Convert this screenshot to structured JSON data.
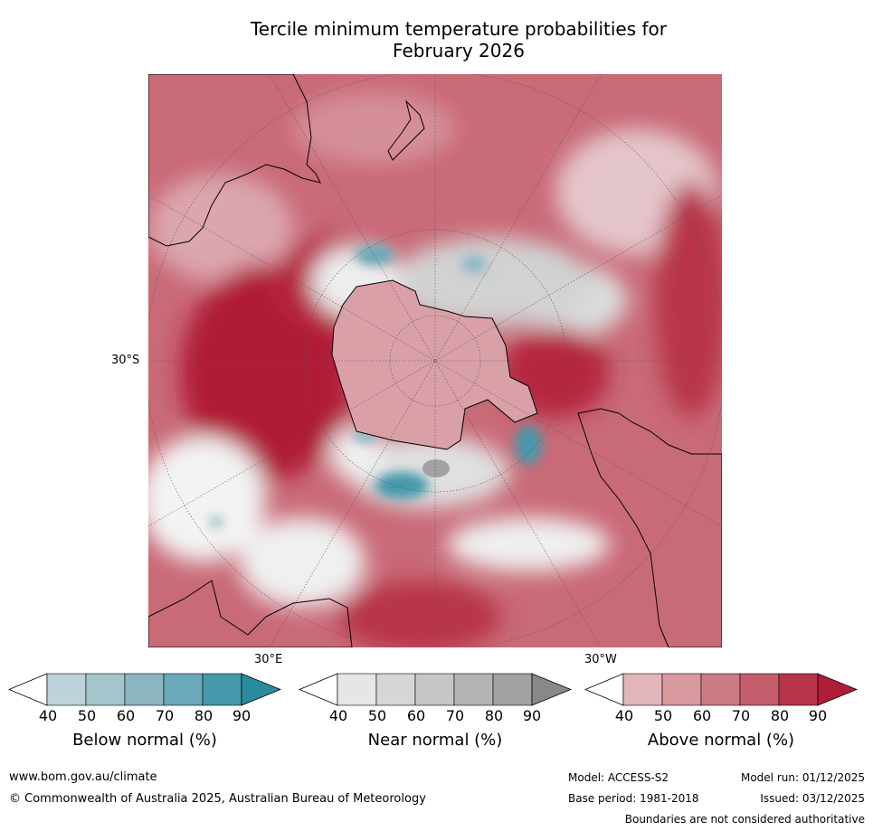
{
  "title": {
    "line1": "Tercile minimum temperature probabilities for",
    "line2": "February 2026"
  },
  "map": {
    "lat_label": "30°S",
    "lon_labels": [
      "30°E",
      "30°W"
    ]
  },
  "colorbars": [
    {
      "title": "Below normal (%)",
      "ticks": [
        "40",
        "50",
        "60",
        "70",
        "80",
        "90"
      ],
      "colors": [
        "#bcd3da",
        "#a5c5cc",
        "#8cb6c2",
        "#6aa9b8",
        "#4599ab",
        "#2a8b9f"
      ]
    },
    {
      "title": "Near normal (%)",
      "ticks": [
        "40",
        "50",
        "60",
        "70",
        "80",
        "90"
      ],
      "colors": [
        "#e6e6e6",
        "#d6d6d6",
        "#c6c6c6",
        "#b4b4b4",
        "#a2a2a2",
        "#888888"
      ]
    },
    {
      "title": "Above normal (%)",
      "ticks": [
        "40",
        "50",
        "60",
        "70",
        "80",
        "90"
      ],
      "colors": [
        "#e2b5bb",
        "#d8999f",
        "#cc7a84",
        "#c45d6b",
        "#b83449",
        "#b01d38"
      ]
    }
  ],
  "footer": {
    "url": "www.bom.gov.au/climate",
    "copyright": "© Commonwealth of Australia 2025, Australian Bureau of Meteorology",
    "model": "Model: ACCESS-S2",
    "base_period": "Base period: 1981-2018",
    "model_run": "Model run: 01/12/2025",
    "issued": "Issued: 03/12/2025",
    "disclaimer": "Boundaries are not considered authoritative"
  }
}
